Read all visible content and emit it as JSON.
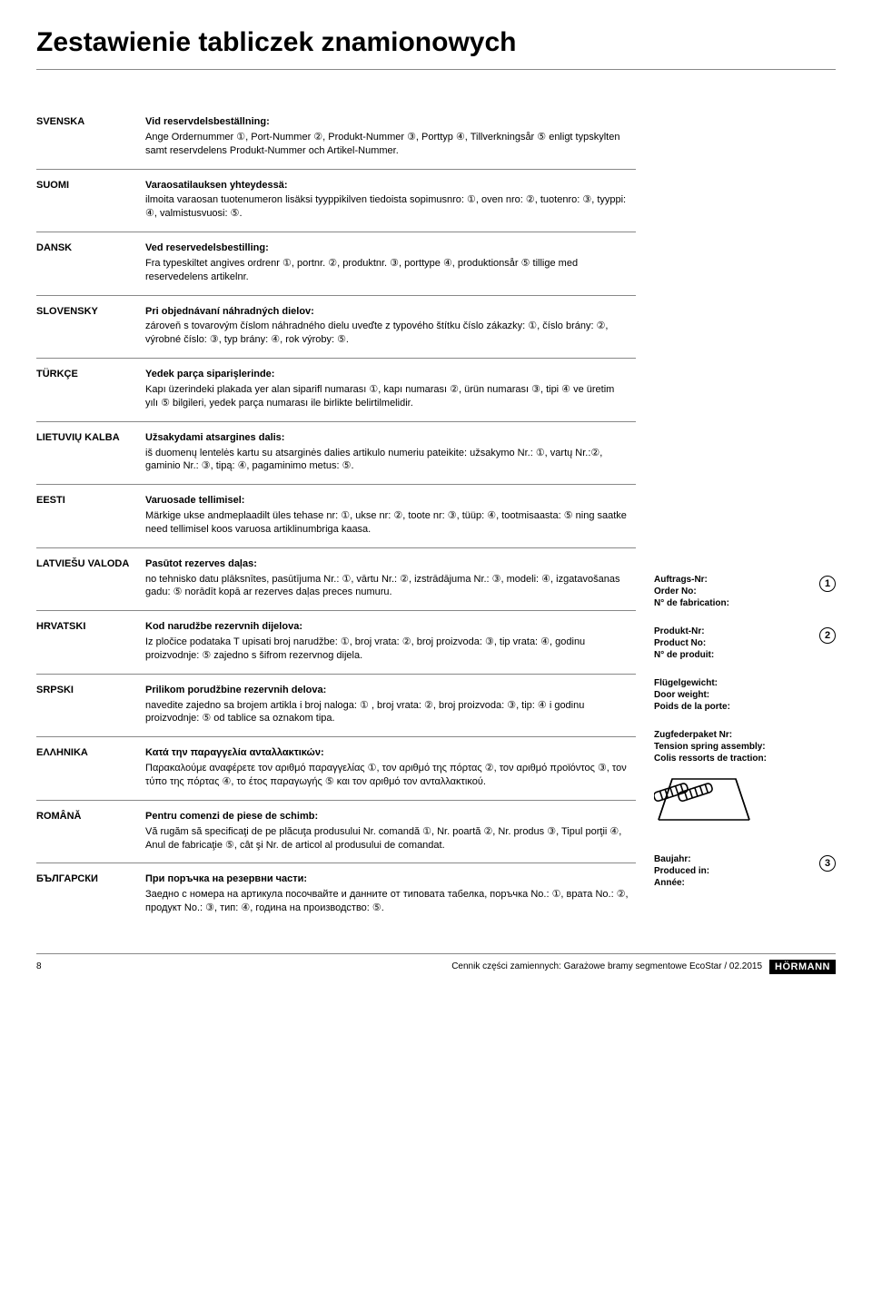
{
  "title": "Zestawienie tabliczek znamionowych",
  "rows": [
    {
      "lang": "SVENSKA",
      "head": "Vid reservdelsbeställning:",
      "body": "Ange Ordernummer ①, Port-Nummer ②, Produkt-Nummer ③, Porttyp ④, Tillverkningsår ⑤ enligt typskylten samt reservdelens Produkt-Nummer och Artikel-Nummer."
    },
    {
      "lang": "SUOMI",
      "head": "Varaosatilauksen yhteydessä:",
      "body": "ilmoita varaosan tuotenumeron lisäksi tyyppikilven tiedoista sopimusnro: ①, oven nro: ②, tuotenro: ③, tyyppi: ④, valmistusvuosi: ⑤."
    },
    {
      "lang": "DANSK",
      "head": "Ved reservedelsbestilling:",
      "body": "Fra typeskiltet angives ordrenr ①, portnr. ②, produktnr. ③, porttype ④, produktionsår ⑤ tillige med reservedelens artikelnr."
    },
    {
      "lang": "SLOVENSKY",
      "head": "Pri objednávaní náhradných dielov:",
      "body": "zároveň s tovarovým číslom náhradného dielu uveďte z typového štítku číslo zákazky: ①, číslo brány: ②, výrobné číslo: ③, typ brány: ④, rok výroby: ⑤."
    },
    {
      "lang": "TÜRKÇE",
      "head": "Yedek parça siparişlerinde:",
      "body": "Kapı üzerindeki plakada yer alan siparifl numarası ①, kapı numarası ②, ürün numarası ③, tipi ④ ve üretim yılı ⑤ bilgileri, yedek parça numarası ile birlikte belirtilmelidir."
    },
    {
      "lang": "LIETUVIŲ KALBA",
      "head": "Užsakydami atsargines dalis:",
      "body": "iš duomenų lentelės kartu su atsarginės dalies artikulo numeriu pateikite: užsakymo Nr.: ①, vartų Nr.:②, gaminio Nr.: ③, tipą: ④, pagaminimo metus: ⑤."
    },
    {
      "lang": "EESTI",
      "head": "Varuosade tellimisel:",
      "body": "Märkige ukse andmeplaadilt üles tehase nr: ①, ukse nr: ②, toote nr: ③, tüüp: ④, tootmisaasta: ⑤ ning saatke need tellimisel koos varuosa artiklinumbriga kaasa."
    },
    {
      "lang": "LATVIEŠU VALODA",
      "head": "Pasūtot rezerves daļas:",
      "body": "no tehnisko datu plāksnītes, pasūtījuma Nr.: ①, vārtu Nr.: ②, izstrādājuma Nr.: ③, modeli: ④, izgatavošanas gadu: ⑤ norādīt kopā ar rezerves daļas preces numuru."
    },
    {
      "lang": "HRVATSKI",
      "head": "Kod narudžbe rezervnih dijelova:",
      "body": "Iz pločice podataka T upisati broj narudžbe: ①, broj vrata: ②, broj proizvoda: ③, tip vrata: ④, godinu proizvodnje: ⑤ zajedno s šifrom rezervnog dijela."
    },
    {
      "lang": "SRPSKI",
      "head": "Prilikom porudžbine rezervnih delova:",
      "body": "navedite zajedno sa brojem artikla i broj naloga: ① , broj vrata: ②, broj proizvoda: ③, tip: ④ i godinu proizvodnje: ⑤ od tablice sa oznakom tipa."
    },
    {
      "lang": "ΕΛΛΗΝΙΚΑ",
      "head": "Κατά την παραγγελία ανταλλακτικών:",
      "body": "Παρακαλούμε αναφέρετε τον αριθμό παραγγελίας ①, τον αριθμό της πόρτας ②, τον αριθμό προϊόντος ③, τον τύπο της πόρτας ④, το έτος παραγωγής ⑤ και τον αριθμό τον ανταλλακτικού."
    },
    {
      "lang": "ROMÂNĂ",
      "head": "Pentru comenzi de piese de schimb:",
      "body": "Vă rugăm să specificaţi de pe plăcuţa produsului Nr. comandă ①, Nr. poartă ②, Nr. produs ③, Tipul porţii ④, Anul de fabricaţie ⑤, cât şi Nr. de articol al produsului de comandat."
    },
    {
      "lang": "БЪЛГАРСКИ",
      "head": "При поръчка на резервни части:",
      "body": "Заедно с номера на артикула посочвайте и данните от типовата табелка, поръчка No.: ①, врата No.: ②, продукт No.: ③, тип: ④, година на производство: ⑤."
    }
  ],
  "side": {
    "block1": {
      "l1": "Auftrags-Nr:",
      "l2": "Order No:",
      "l3": "N° de fabrication:",
      "num": "1"
    },
    "block2": {
      "l1": "Produkt-Nr:",
      "l2": "Product No:",
      "l3": "N° de produit:",
      "num": "2"
    },
    "block3": {
      "l1": "Flügelgewicht:",
      "l2": "Door weight:",
      "l3": "Poids de la porte:"
    },
    "block4": {
      "l1": "Zugfederpaket Nr:",
      "l2": "Tension spring assembly:",
      "l3": "Colis ressorts de traction:"
    },
    "block5": {
      "l1": "Baujahr:",
      "l2": "Produced in:",
      "l3": "Année:",
      "num": "3"
    }
  },
  "footer": {
    "page": "8",
    "text": "Cennik części zamiennych: Garażowe bramy segmentowe EcoStar / 02.2015",
    "brand": "HÖRMANN"
  },
  "colors": {
    "text": "#000000",
    "bg": "#ffffff",
    "rule": "#888888"
  }
}
